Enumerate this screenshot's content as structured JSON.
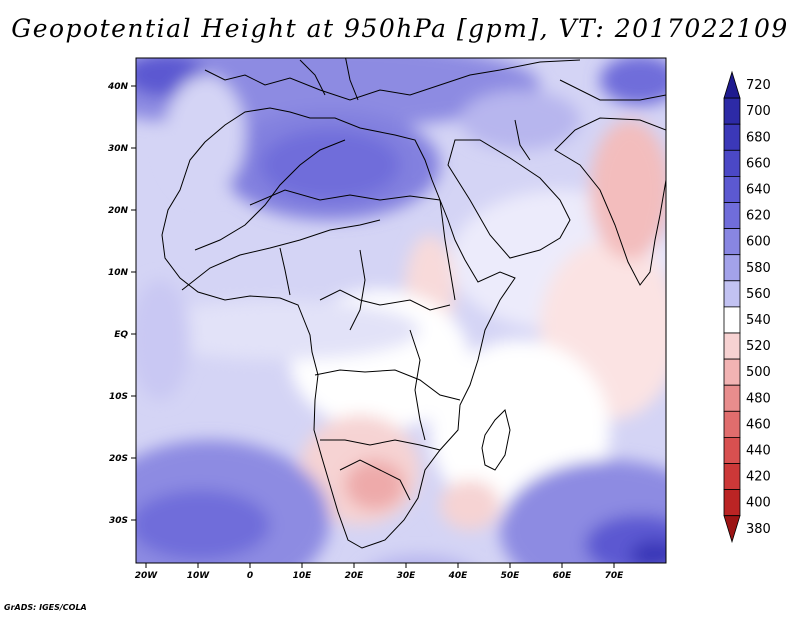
{
  "title": "Geopotential Height at 950hPa [gpm], VT: 2017022109",
  "footer": "GrADS: IGES/COLA",
  "map": {
    "lon_labels": [
      "20W",
      "10W",
      "0",
      "10E",
      "20E",
      "30E",
      "40E",
      "50E",
      "60E",
      "70E"
    ],
    "lat_labels": [
      "40N",
      "30N",
      "20N",
      "10N",
      "EQ",
      "10S",
      "20S",
      "30S"
    ],
    "region": "Africa, Arabia, southern Europe, India"
  },
  "colorbar": {
    "levels": [
      "720",
      "700",
      "680",
      "660",
      "640",
      "620",
      "600",
      "580",
      "560",
      "540",
      "520",
      "500",
      "480",
      "460",
      "440",
      "420",
      "400",
      "380"
    ],
    "colors": [
      "#1f1b8f",
      "#2d2aa6",
      "#3b38b8",
      "#4b48c6",
      "#5c59d1",
      "#706dda",
      "#8886e2",
      "#a3a2ea",
      "#c2c2f2",
      "#ffffff",
      "#f7d2d2",
      "#f2b3b3",
      "#e88d8d",
      "#e06d6d",
      "#d85050",
      "#cc3838",
      "#bb2424",
      "#9c1414"
    ]
  }
}
